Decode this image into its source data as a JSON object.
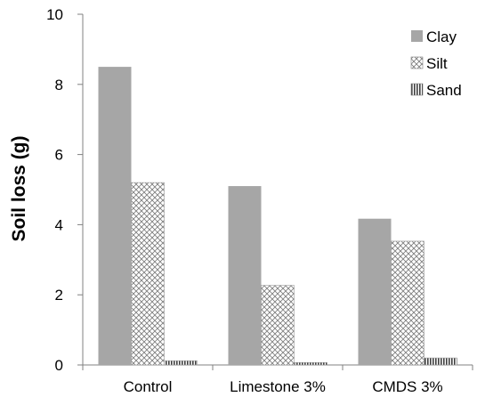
{
  "chart_data": {
    "type": "bar",
    "categories": [
      "Control",
      "Limestone 3%",
      "CMDS 3%"
    ],
    "series": [
      {
        "name": "Clay",
        "values": [
          8.5,
          5.1,
          4.17
        ],
        "color": "#a6a6a6",
        "pattern": "solid"
      },
      {
        "name": "Silt",
        "values": [
          5.2,
          2.27,
          3.53
        ],
        "color": "#7f7f7f",
        "pattern": "crosshatch"
      },
      {
        "name": "Sand",
        "values": [
          0.12,
          0.07,
          0.2
        ],
        "color": "#404040",
        "pattern": "vertical-lines"
      }
    ],
    "ylabel": "Soil loss (g)",
    "xlabel": "",
    "ylim": [
      0,
      10
    ],
    "yticks": [
      0,
      2,
      4,
      6,
      8,
      10
    ],
    "grid": false,
    "legend_position": "top-right"
  }
}
